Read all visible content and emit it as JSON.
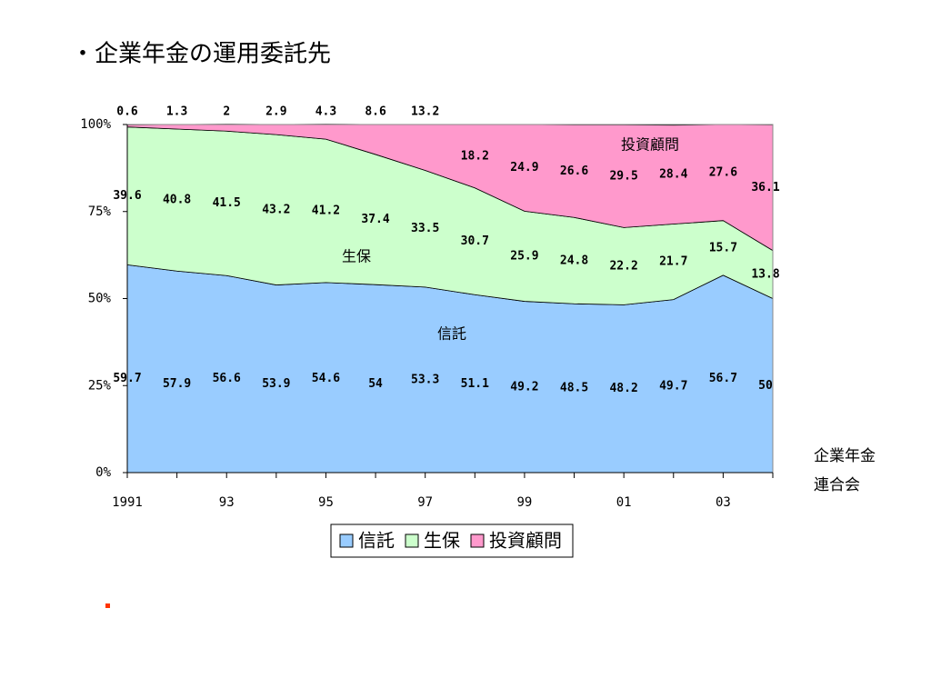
{
  "chart_data": {
    "type": "stacked_area",
    "title": "・企業年金の運用委託先",
    "source": [
      "企業年金",
      "連合会"
    ],
    "categories": [
      "1991",
      null,
      "93",
      null,
      "95",
      null,
      "97",
      null,
      "99",
      null,
      "01",
      null,
      "03",
      null
    ],
    "series": [
      {
        "name": "信託",
        "color": "#99ccff",
        "values": [
          59.7,
          57.9,
          56.6,
          53.9,
          54.6,
          54.0,
          53.3,
          51.1,
          49.2,
          48.5,
          48.2,
          49.7,
          56.7,
          50.0
        ]
      },
      {
        "name": "生保",
        "color": "#ccffcc",
        "values": [
          39.6,
          40.8,
          41.5,
          43.2,
          41.2,
          37.4,
          33.5,
          30.7,
          25.9,
          24.8,
          22.2,
          21.7,
          15.7,
          13.8
        ]
      },
      {
        "name": "投資顧問",
        "color": "#ff99cc",
        "values": [
          0.6,
          1.3,
          2.0,
          2.9,
          4.3,
          8.6,
          13.2,
          18.2,
          24.9,
          26.6,
          29.5,
          28.4,
          27.6,
          36.1
        ]
      }
    ],
    "ylim": [
      0,
      100
    ],
    "yticks": [
      {
        "value": 0,
        "label": "0%"
      },
      {
        "value": 25,
        "label": "25%"
      },
      {
        "value": 50,
        "label": "50%"
      },
      {
        "value": 75,
        "label": "75%"
      },
      {
        "value": 100,
        "label": "100%"
      }
    ],
    "legend": "bottom",
    "grid": false
  }
}
